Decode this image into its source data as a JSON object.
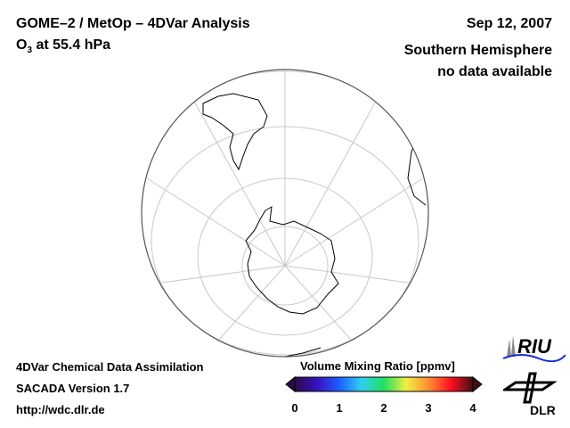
{
  "header": {
    "title": "GOME–2 / MetOp – 4DVar Analysis",
    "subtitle_prefix": "O",
    "subtitle_sub": "3",
    "subtitle_suffix": " at 55.4 hPa",
    "date": "Sep 12, 2007",
    "hemisphere": "Southern Hemisphere",
    "status": "no data available"
  },
  "footer": {
    "line1": "4DVar Chemical Data Assimilation",
    "line2": "SACADA Version 1.7",
    "line3": "http://wdc.dlr.de"
  },
  "colorbar": {
    "title": "Volume Mixing Ratio [ppmv]",
    "ticks": [
      "0",
      "1",
      "2",
      "3",
      "4"
    ],
    "range": [
      0,
      4
    ],
    "colors": [
      "#2a0a4a",
      "#3a10c0",
      "#1a60ff",
      "#30d0f0",
      "#20e060",
      "#f0f040",
      "#ff9030",
      "#ff1020",
      "#401010"
    ]
  },
  "logos": {
    "riu": "RIU",
    "dlr": "DLR"
  }
}
